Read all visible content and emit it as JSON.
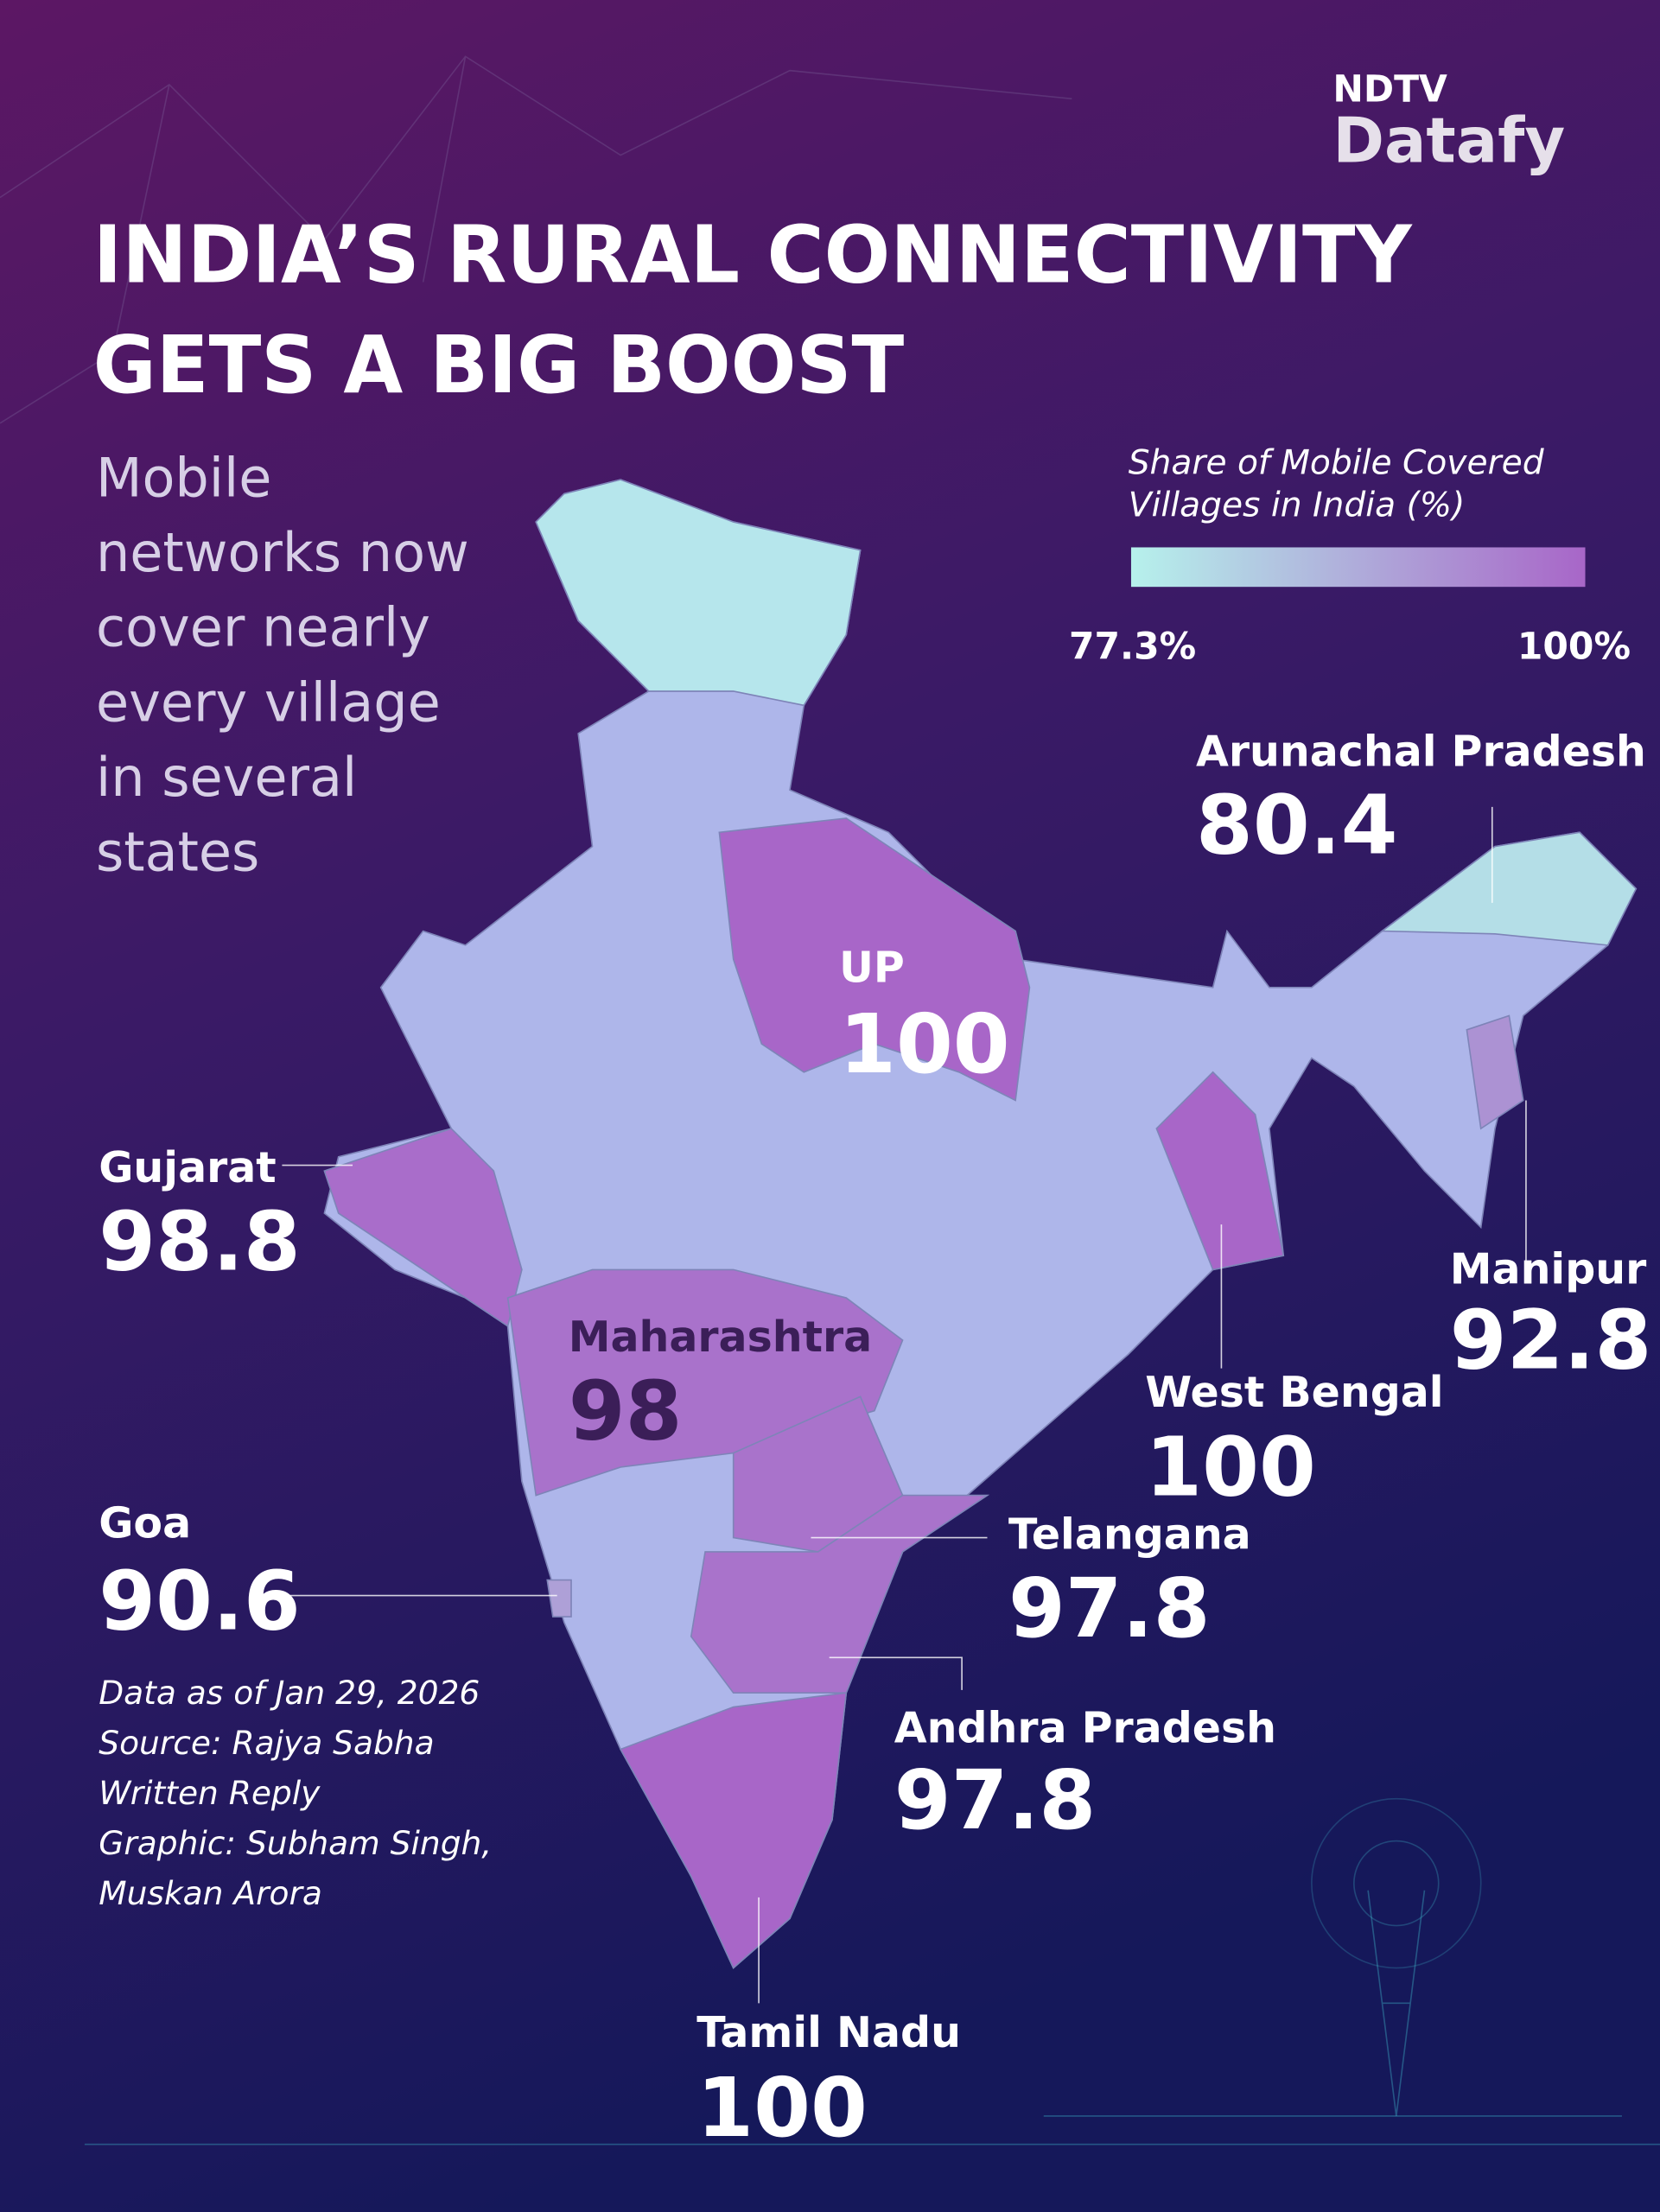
{
  "logo": {
    "top": "NDTV",
    "bottom": "Datafy"
  },
  "title": [
    "INDIA’S RURAL CONNECTIVITY",
    "GETS A BIG BOOST"
  ],
  "subtitle": [
    "Mobile",
    "networks now",
    "cover nearly",
    "every village",
    "in several",
    "states"
  ],
  "legend": {
    "title": [
      "Share of Mobile Covered",
      "Villages in India (%)"
    ],
    "min": {
      "value": 77.3,
      "label": "77.3%"
    },
    "max": {
      "value": 100,
      "label": "100%"
    },
    "colors": [
      "#b6f1ec",
      "#a866c8"
    ]
  },
  "states": [
    {
      "name": "Arunachal Pradesh",
      "value": 80.4
    },
    {
      "name": "UP",
      "value": 100
    },
    {
      "name": "Gujarat",
      "value": 98.8
    },
    {
      "name": "Maharashtra",
      "value": 98
    },
    {
      "name": "Manipur",
      "value": 92.8
    },
    {
      "name": "West Bengal",
      "value": 100
    },
    {
      "name": "Goa",
      "value": 90.6
    },
    {
      "name": "Telangana",
      "value": 97.8
    },
    {
      "name": "Andhra Pradesh",
      "value": 97.8
    },
    {
      "name": "Tamil Nadu",
      "value": 100
    }
  ],
  "notes": [
    "Data as of Jan 29, 2026",
    "Source: Rajya Sabha",
    "Written Reply",
    "Graphic: Subham Singh,",
    "Muskan Arora"
  ]
}
